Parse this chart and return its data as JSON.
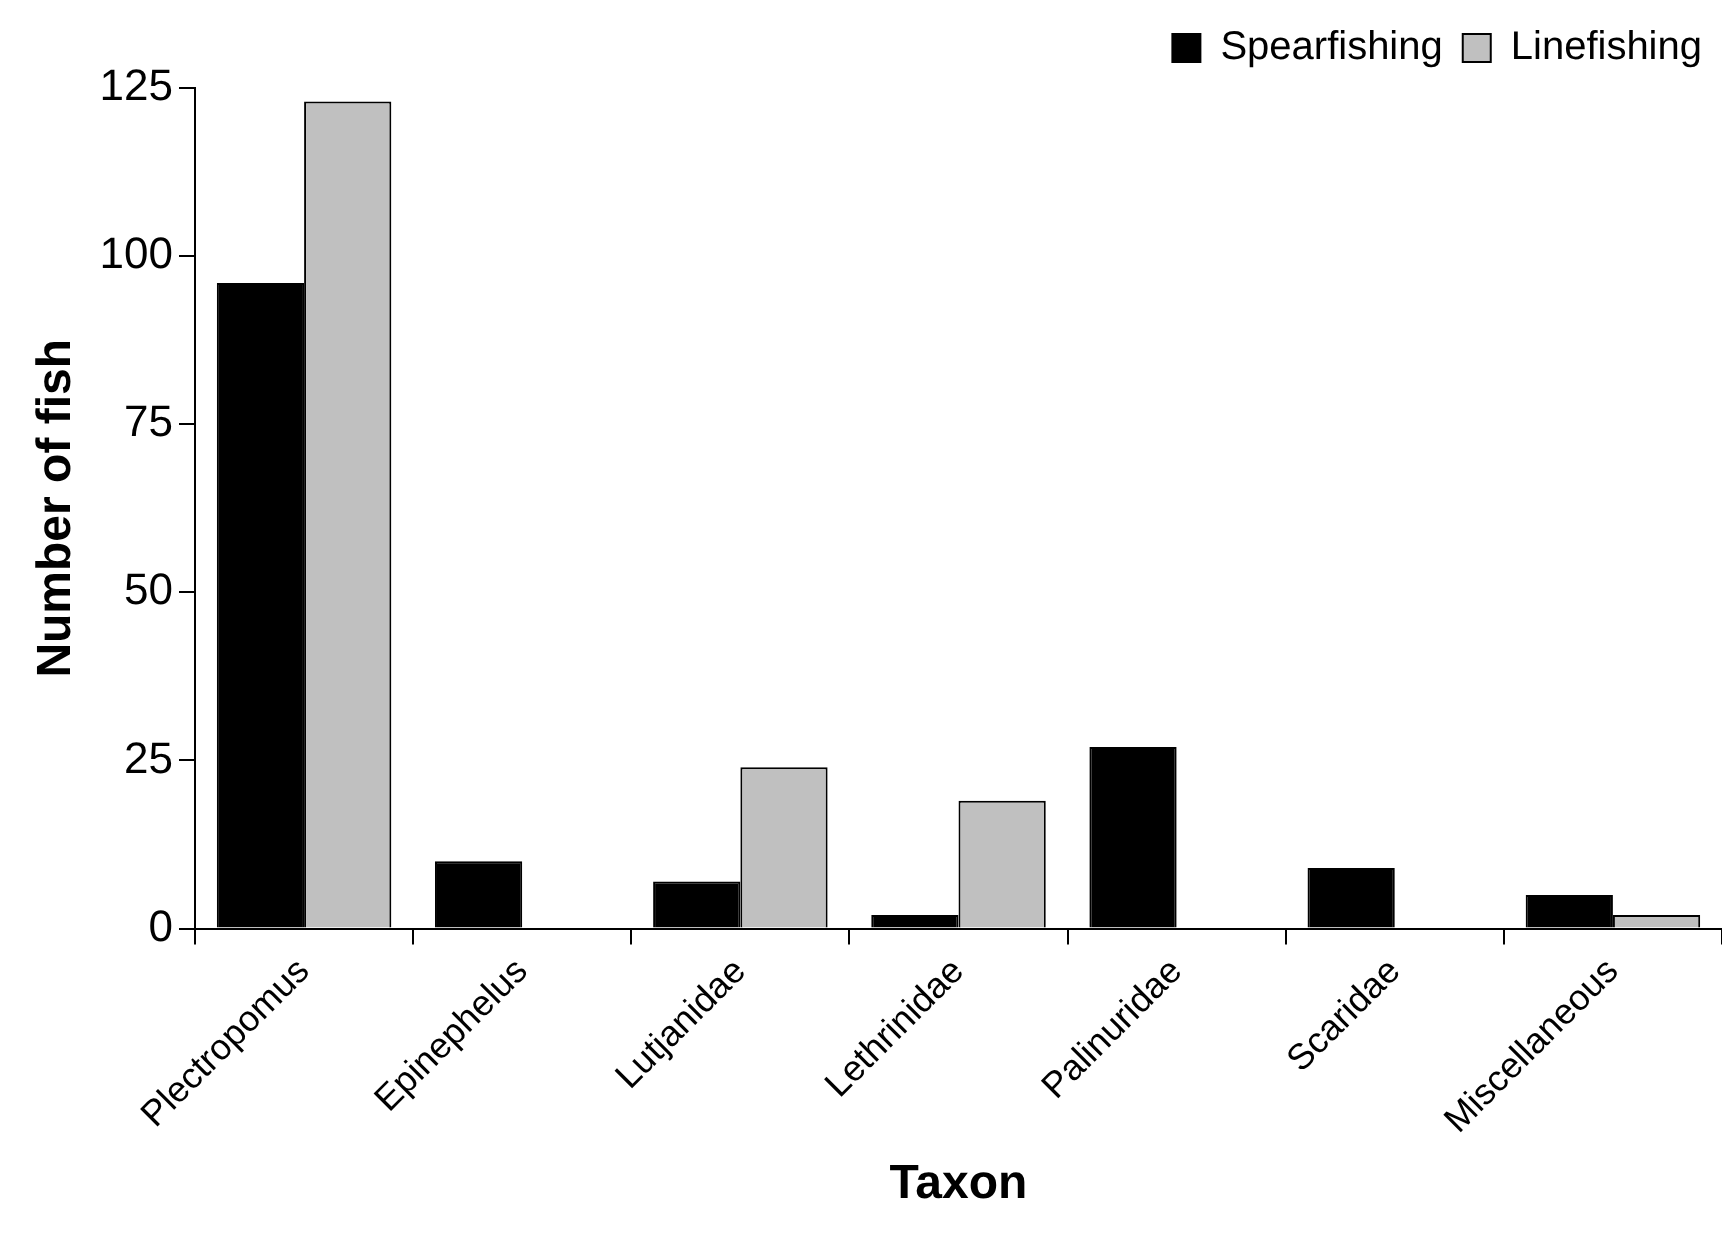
{
  "chart_data": {
    "type": "bar",
    "xlabel": "Taxon",
    "ylabel": "Number of fish",
    "categories": [
      "Plectropomus",
      "Epinephelus",
      "Lutjanidae",
      "Lethrinidae",
      "Palinuridae",
      "Scaridae",
      "Miscellaneous"
    ],
    "series": [
      {
        "name": "Spearfishing",
        "color": "#000000",
        "values": [
          96,
          10,
          7,
          2,
          27,
          9,
          5
        ]
      },
      {
        "name": "Linefishing",
        "color": "#c0c0c0",
        "values": [
          123,
          0,
          24,
          19,
          0,
          0,
          2
        ]
      }
    ],
    "ylim": [
      0,
      125
    ],
    "yticks": [
      0,
      25,
      50,
      75,
      100,
      125
    ],
    "grid": false,
    "legend": "top right"
  }
}
